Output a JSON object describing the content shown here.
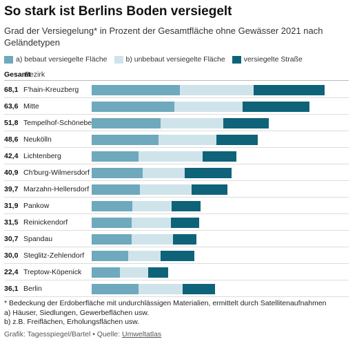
{
  "title": "So stark ist Berlins Boden versiegelt",
  "subtitle": "Grad der Versiegelung* in Prozent der Gesamtfläche ohne Gewässer 2021 nach Geländetypen",
  "legend": {
    "a": "a) bebaut versiegelte Fläche",
    "b": "b) unbebaut versiegelte Fläche",
    "c": "versiegelte Straße"
  },
  "colors": {
    "a": "#6ea9bd",
    "b": "#cfe3ea",
    "c": "#0e6379"
  },
  "header": {
    "total": "Gesamt",
    "district": "Bezirk"
  },
  "chart_data": {
    "type": "bar",
    "stacked": true,
    "orientation": "horizontal",
    "xlim": [
      0,
      68.1
    ],
    "categories": [
      "F'hain-Kreuzberg",
      "Mitte",
      "Tempelhof-Schöneberg",
      "Neukölln",
      "Lichtenberg",
      "Ch'burg-Wilmersdorf",
      "Marzahn-Hellersdorf",
      "Pankow",
      "Reinickendorf",
      "Spandau",
      "Steglitz-Zehlendorf",
      "Treptow-Köpenick",
      "Berlin"
    ],
    "totals": [
      "68,1",
      "63,6",
      "51,8",
      "48,6",
      "42,4",
      "40,9",
      "39,7",
      "31,9",
      "31,5",
      "30,7",
      "30,0",
      "22,4",
      "36,1"
    ],
    "series": [
      {
        "name": "a) bebaut versiegelte Fläche",
        "values": [
          25.8,
          24.1,
          20.1,
          19.5,
          13.8,
          14.9,
          14.1,
          11.9,
          11.6,
          11.6,
          10.7,
          8.3,
          13.8
        ]
      },
      {
        "name": "b) unbebaut versiegelte Fläche",
        "values": [
          21.5,
          20.1,
          18.4,
          17.0,
          18.6,
          12.4,
          15.2,
          11.5,
          11.6,
          12.2,
          9.5,
          8.3,
          12.8
        ]
      },
      {
        "name": "versiegelte Straße",
        "values": [
          20.8,
          19.4,
          13.3,
          12.1,
          10.0,
          13.6,
          10.4,
          8.5,
          8.3,
          6.9,
          9.8,
          5.8,
          9.5
        ]
      }
    ]
  },
  "footnotes": {
    "star": "* Bedeckung der Erdoberfläche mit undurchlässigen Materialien, ermittelt durch Satellitenaufnahmen",
    "a": "a) Häuser, Siedlungen, Gewerbeflächen usw.",
    "b": "b) z.B. Freiflächen, Erholungsflächen usw."
  },
  "credit": {
    "prefix": "Grafik: Tagesspiegel/Bartel • Quelle: ",
    "source": "Umweltatlas"
  }
}
